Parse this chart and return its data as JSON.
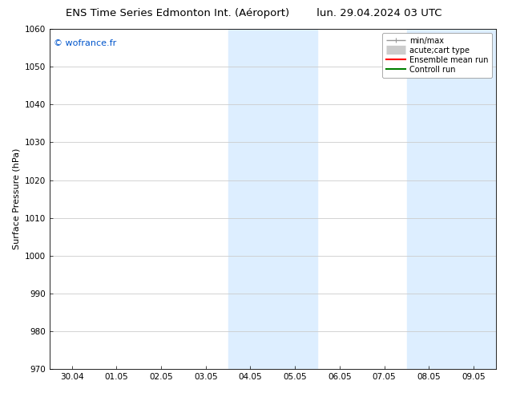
{
  "title_left": "ENS Time Series Edmonton Int. (Aéroport)",
  "title_right": "lun. 29.04.2024 03 UTC",
  "ylabel": "Surface Pressure (hPa)",
  "ylim": [
    970,
    1060
  ],
  "yticks": [
    970,
    980,
    990,
    1000,
    1010,
    1020,
    1030,
    1040,
    1050,
    1060
  ],
  "xtick_labels": [
    "30.04",
    "01.05",
    "02.05",
    "03.05",
    "04.05",
    "05.05",
    "06.05",
    "07.05",
    "08.05",
    "09.05"
  ],
  "watermark": "© wofrance.fr",
  "watermark_color": "#0055cc",
  "bg_color": "#ffffff",
  "plot_bg_color": "#ffffff",
  "shaded_regions": [
    {
      "xstart": 4.0,
      "xend": 5.0,
      "color": "#ddeeff"
    },
    {
      "xstart": 5.0,
      "xend": 6.0,
      "color": "#ddeeff"
    },
    {
      "xstart": 8.0,
      "xend": 9.0,
      "color": "#ddeeff"
    },
    {
      "xstart": 9.0,
      "xend": 10.0,
      "color": "#ddeeff"
    }
  ],
  "legend_entries": [
    {
      "label": "min/max",
      "color": "#999999",
      "lw": 1.0,
      "type": "line_with_caps"
    },
    {
      "label": "acute;cart type",
      "color": "#cccccc",
      "lw": 8,
      "type": "thick_line"
    },
    {
      "label": "Ensemble mean run",
      "color": "#ff0000",
      "lw": 1.5,
      "type": "line"
    },
    {
      "label": "Controll run",
      "color": "#008000",
      "lw": 1.5,
      "type": "line"
    }
  ],
  "grid_color": "#cccccc",
  "title_fontsize": 9.5,
  "axis_label_fontsize": 8,
  "tick_fontsize": 7.5,
  "watermark_fontsize": 8,
  "legend_fontsize": 7
}
